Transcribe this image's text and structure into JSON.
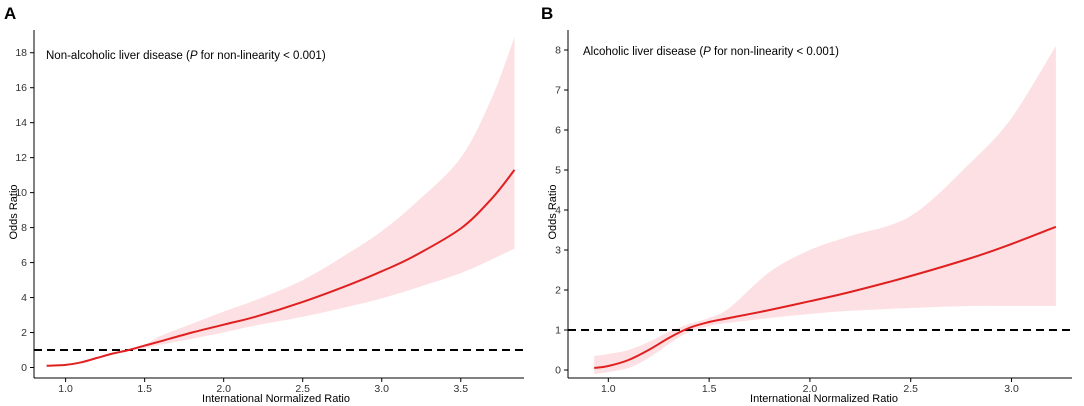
{
  "colors": {
    "curve": "#e02020",
    "band": "#fde0e3",
    "reference": "#000000",
    "axis": "#000000"
  },
  "chart_data": [
    {
      "panel": "A",
      "type": "line",
      "annotation": {
        "prefix": "Non-alcoholic liver disease (",
        "italic": "P",
        "suffix": " for non-linearity < 0.001)"
      },
      "xlabel": "International Normalized Ratio",
      "ylabel": "Odds Ratio",
      "xlim": [
        0.8,
        3.9
      ],
      "ylim": [
        -0.6,
        19.3
      ],
      "xticks": [
        1.0,
        1.5,
        2.0,
        2.5,
        3.0,
        3.5
      ],
      "xtick_labels": [
        "1.0",
        "1.5",
        "2.0",
        "2.5",
        "3.0",
        "3.5"
      ],
      "yticks": [
        0,
        2,
        4,
        6,
        8,
        10,
        12,
        14,
        16,
        18
      ],
      "ytick_labels": [
        "0",
        "2",
        "4",
        "6",
        "8",
        "10",
        "12",
        "14",
        "16",
        "18"
      ],
      "reference_y": 1,
      "x": [
        0.88,
        1.0,
        1.1,
        1.2,
        1.3,
        1.4,
        1.5,
        1.6,
        1.8,
        2.0,
        2.2,
        2.5,
        2.8,
        3.0,
        3.2,
        3.5,
        3.7,
        3.84
      ],
      "y": [
        0.1,
        0.15,
        0.3,
        0.55,
        0.8,
        1.0,
        1.25,
        1.5,
        2.0,
        2.45,
        2.9,
        3.75,
        4.75,
        5.5,
        6.35,
        7.95,
        9.7,
        11.3
      ],
      "lower": [
        0.1,
        0.15,
        0.3,
        0.5,
        0.75,
        0.95,
        1.1,
        1.3,
        1.65,
        2.0,
        2.4,
        2.9,
        3.5,
        3.95,
        4.5,
        5.4,
        6.2,
        6.8
      ],
      "upper": [
        0.1,
        0.15,
        0.3,
        0.55,
        0.8,
        1.0,
        1.3,
        1.8,
        2.5,
        3.2,
        3.85,
        5.0,
        6.6,
        7.8,
        9.3,
        12.0,
        15.5,
        18.9
      ]
    },
    {
      "panel": "B",
      "type": "line",
      "annotation": {
        "prefix": "Alcoholic liver disease (",
        "italic": "P",
        "suffix": " for non-linearity < 0.001)"
      },
      "xlabel": "International Normalized Ratio",
      "ylabel": "Odds Ratio",
      "xlim": [
        0.8,
        3.3
      ],
      "ylim": [
        -0.2,
        8.5
      ],
      "xticks": [
        1.0,
        1.5,
        2.0,
        2.5,
        3.0
      ],
      "xtick_labels": [
        "1.0",
        "1.5",
        "2.0",
        "2.5",
        "3.0"
      ],
      "yticks": [
        0,
        1,
        2,
        3,
        4,
        5,
        6,
        7,
        8
      ],
      "ytick_labels": [
        "0",
        "1",
        "2",
        "3",
        "4",
        "5",
        "6",
        "7",
        "8"
      ],
      "reference_y": 1,
      "x": [
        0.93,
        1.0,
        1.1,
        1.2,
        1.3,
        1.4,
        1.5,
        1.6,
        1.8,
        2.0,
        2.2,
        2.5,
        2.8,
        3.0,
        3.22
      ],
      "y": [
        0.05,
        0.1,
        0.25,
        0.5,
        0.8,
        1.05,
        1.2,
        1.3,
        1.5,
        1.72,
        1.95,
        2.35,
        2.8,
        3.15,
        3.58
      ],
      "lower": [
        -0.1,
        -0.05,
        0.05,
        0.3,
        0.65,
        0.95,
        1.1,
        1.18,
        1.3,
        1.4,
        1.48,
        1.55,
        1.6,
        1.6,
        1.6
      ],
      "upper": [
        0.35,
        0.4,
        0.5,
        0.7,
        0.95,
        1.15,
        1.3,
        1.55,
        2.45,
        3.0,
        3.35,
        3.85,
        5.2,
        6.3,
        8.1
      ]
    }
  ]
}
